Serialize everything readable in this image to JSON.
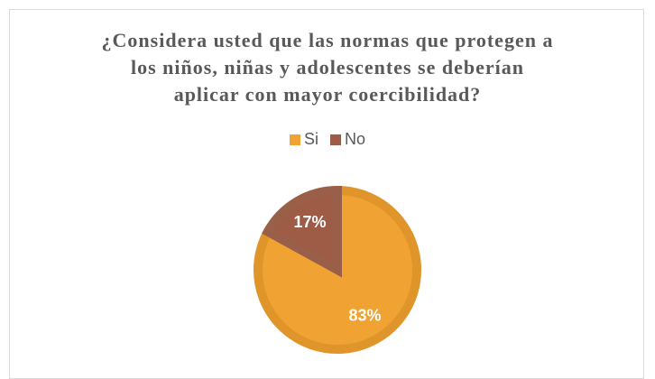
{
  "chart_data": {
    "type": "pie",
    "title_lines": [
      "¿Considera usted que las normas que protegen a",
      "los niños, niñas y adolescentes se deberían",
      "aplicar con mayor coercibilidad?"
    ],
    "legend_position": "top",
    "slices": [
      {
        "name": "Si",
        "value": 83,
        "label": "83%",
        "color": "#F0A332",
        "border": "#E0952B"
      },
      {
        "name": "No",
        "value": 17,
        "label": "17%",
        "color": "#9E5B45",
        "border": "#9A5F48"
      }
    ]
  }
}
